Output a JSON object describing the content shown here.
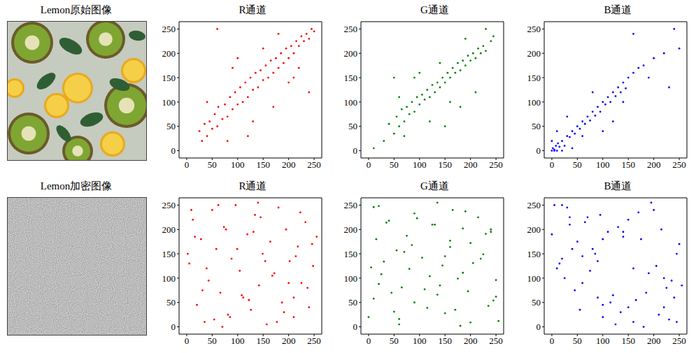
{
  "images": [
    {
      "title": "Lemon原始图像"
    },
    {
      "title": "Lemon加密图像"
    }
  ],
  "chart_data": [
    {
      "type": "scatter",
      "title": "R通道",
      "color": "#ff0000",
      "marker": "dot",
      "x": [
        25,
        30,
        35,
        40,
        45,
        50,
        55,
        60,
        62,
        70,
        75,
        80,
        85,
        90,
        95,
        100,
        105,
        110,
        115,
        120,
        125,
        130,
        135,
        140,
        145,
        150,
        155,
        160,
        165,
        170,
        175,
        180,
        185,
        190,
        195,
        200,
        205,
        210,
        215,
        220,
        225,
        230,
        235,
        240,
        245,
        250,
        60,
        80,
        100,
        130,
        150,
        170,
        200,
        220,
        40,
        120,
        90,
        180,
        210,
        240
      ],
      "values": [
        40,
        20,
        55,
        30,
        60,
        45,
        75,
        50,
        90,
        65,
        95,
        70,
        110,
        85,
        120,
        95,
        130,
        100,
        140,
        110,
        150,
        125,
        160,
        130,
        165,
        145,
        175,
        150,
        185,
        160,
        190,
        170,
        200,
        180,
        210,
        190,
        215,
        200,
        225,
        215,
        235,
        225,
        240,
        230,
        250,
        245,
        250,
        20,
        190,
        60,
        210,
        90,
        140,
        170,
        100,
        30,
        170,
        240,
        150,
        120
      ],
      "xlim": [
        -15,
        265
      ],
      "ylim": [
        -15,
        265
      ],
      "xticks": [
        0,
        50,
        100,
        150,
        200,
        250
      ],
      "yticks": [
        0,
        50,
        100,
        150,
        200,
        250
      ]
    },
    {
      "type": "scatter",
      "title": "G通道",
      "color": "#008000",
      "marker": "dot",
      "x": [
        10,
        30,
        40,
        50,
        55,
        60,
        65,
        70,
        75,
        80,
        85,
        90,
        95,
        100,
        105,
        110,
        115,
        120,
        125,
        130,
        135,
        140,
        145,
        150,
        155,
        160,
        165,
        170,
        175,
        180,
        185,
        190,
        195,
        200,
        205,
        210,
        215,
        220,
        225,
        230,
        240,
        245,
        50,
        70,
        100,
        120,
        140,
        160,
        190,
        210,
        60,
        150,
        230,
        90,
        180
      ],
      "values": [
        5,
        20,
        55,
        35,
        70,
        50,
        85,
        60,
        90,
        75,
        100,
        80,
        110,
        95,
        115,
        105,
        125,
        110,
        135,
        120,
        140,
        130,
        150,
        140,
        160,
        150,
        170,
        160,
        180,
        165,
        185,
        175,
        195,
        185,
        200,
        190,
        210,
        200,
        215,
        205,
        225,
        235,
        150,
        30,
        160,
        60,
        180,
        100,
        230,
        120,
        110,
        50,
        250,
        150,
        90
      ],
      "xlim": [
        -15,
        265
      ],
      "ylim": [
        -15,
        265
      ],
      "xticks": [
        0,
        50,
        100,
        150,
        200,
        250
      ],
      "yticks": [
        0,
        50,
        100,
        150,
        200,
        250
      ]
    },
    {
      "type": "scatter",
      "title": "B通道",
      "color": "#0000ff",
      "marker": "dot",
      "x": [
        0,
        2,
        5,
        8,
        10,
        12,
        15,
        20,
        25,
        30,
        35,
        40,
        45,
        50,
        55,
        60,
        65,
        70,
        75,
        80,
        85,
        90,
        95,
        100,
        105,
        110,
        115,
        120,
        125,
        130,
        135,
        140,
        145,
        150,
        160,
        170,
        180,
        190,
        200,
        220,
        240,
        0,
        5,
        20,
        40,
        60,
        10,
        30,
        80,
        120,
        160,
        230,
        250,
        100,
        140
      ],
      "values": [
        0,
        5,
        2,
        10,
        0,
        15,
        8,
        20,
        10,
        30,
        28,
        40,
        35,
        50,
        45,
        60,
        55,
        70,
        62,
        80,
        72,
        90,
        80,
        100,
        95,
        110,
        100,
        120,
        112,
        130,
        120,
        140,
        128,
        150,
        160,
        170,
        175,
        150,
        190,
        200,
        250,
        20,
        0,
        0,
        5,
        30,
        40,
        70,
        120,
        60,
        240,
        130,
        210,
        40,
        100
      ],
      "xlim": [
        -15,
        265
      ],
      "ylim": [
        -15,
        265
      ],
      "xticks": [
        0,
        50,
        100,
        150,
        200,
        250
      ],
      "yticks": [
        0,
        50,
        100,
        150,
        200,
        250
      ]
    },
    {
      "type": "scatter",
      "title": "R通道",
      "color": "#ff0000",
      "marker": "dot",
      "x": [
        5,
        12,
        20,
        28,
        35,
        43,
        50,
        58,
        66,
        73,
        81,
        88,
        96,
        104,
        111,
        119,
        126,
        134,
        142,
        149,
        157,
        164,
        172,
        180,
        187,
        195,
        202,
        210,
        218,
        225,
        233,
        240,
        248,
        255,
        9,
        31,
        54,
        77,
        99,
        122,
        145,
        168,
        191,
        214,
        237,
        16,
        39,
        62,
        85,
        108,
        131,
        154,
        177,
        200,
        223,
        246,
        2,
        70,
        140,
        210
      ],
      "values": [
        130,
        220,
        45,
        180,
        10,
        95,
        240,
        160,
        70,
        205,
        25,
        140,
        250,
        115,
        60,
        190,
        35,
        230,
        85,
        150,
        5,
        175,
        110,
        245,
        50,
        200,
        135,
        20,
        165,
        90,
        215,
        40,
        125,
        185,
        240,
        75,
        15,
        200,
        160,
        55,
        225,
        105,
        30,
        145,
        80,
        185,
        120,
        250,
        20,
        65,
        195,
        135,
        10,
        90,
        235,
        170,
        150,
        0,
        255,
        60
      ],
      "xlim": [
        -15,
        265
      ],
      "ylim": [
        -15,
        265
      ],
      "xticks": [
        0,
        50,
        100,
        150,
        200,
        250
      ],
      "yticks": [
        0,
        50,
        100,
        150,
        200,
        250
      ]
    },
    {
      "type": "scatter",
      "title": "G通道",
      "color": "#008000",
      "marker": "dot",
      "x": [
        130,
        220,
        45,
        180,
        10,
        95,
        240,
        160,
        70,
        205,
        25,
        140,
        250,
        115,
        60,
        190,
        35,
        230,
        85,
        150,
        5,
        175,
        110,
        245,
        50,
        200,
        135,
        20,
        165,
        90,
        215,
        40,
        125,
        185,
        240,
        75,
        15,
        200,
        160,
        55,
        225,
        105,
        30,
        145,
        80,
        185,
        120,
        250,
        20,
        65,
        195,
        135,
        10,
        90,
        235,
        170,
        150,
        0,
        255,
        60
      ],
      "values": [
        210,
        140,
        70,
        2,
        246,
        223,
        200,
        177,
        154,
        131,
        108,
        85,
        62,
        39,
        16,
        237,
        214,
        191,
        168,
        145,
        122,
        99,
        77,
        54,
        31,
        9,
        255,
        248,
        240,
        233,
        225,
        218,
        210,
        202,
        195,
        187,
        180,
        172,
        164,
        157,
        149,
        142,
        134,
        126,
        119,
        111,
        104,
        96,
        88,
        81,
        73,
        66,
        58,
        50,
        43,
        35,
        28,
        20,
        12,
        5
      ],
      "xlim": [
        -15,
        265
      ],
      "ylim": [
        -15,
        265
      ],
      "xticks": [
        0,
        50,
        100,
        150,
        200,
        250
      ],
      "yticks": [
        0,
        50,
        100,
        150,
        200,
        250
      ]
    },
    {
      "type": "scatter",
      "title": "B通道",
      "color": "#0000ff",
      "marker": "dot",
      "x": [
        100,
        200,
        15,
        60,
        175,
        240,
        35,
        125,
        85,
        220,
        5,
        150,
        250,
        70,
        190,
        45,
        110,
        230,
        20,
        165,
        95,
        205,
        55,
        140,
        255,
        30,
        180,
        80,
        215,
        120,
        10,
        160,
        65,
        245,
        100,
        25,
        195,
        135,
        50,
        225,
        90,
        170,
        0,
        115,
        235,
        40,
        150,
        75,
        210,
        130,
        185,
        60,
        20,
        245,
        100,
        160,
        220,
        35,
        90,
        140
      ],
      "values": [
        20,
        240,
        130,
        90,
        180,
        60,
        210,
        5,
        150,
        100,
        250,
        40,
        170,
        225,
        110,
        75,
        195,
        15,
        140,
        55,
        230,
        125,
        35,
        185,
        85,
        245,
        0,
        160,
        200,
        65,
        120,
        10,
        215,
        150,
        45,
        100,
        255,
        30,
        175,
        80,
        135,
        235,
        190,
        50,
        95,
        160,
        220,
        115,
        25,
        205,
        70,
        145,
        250,
        10,
        180,
        120,
        40,
        225,
        60,
        195
      ],
      "xlim": [
        -15,
        265
      ],
      "ylim": [
        -15,
        265
      ],
      "xticks": [
        0,
        50,
        100,
        150,
        200,
        250
      ],
      "yticks": [
        0,
        50,
        100,
        150,
        200,
        250
      ]
    }
  ]
}
